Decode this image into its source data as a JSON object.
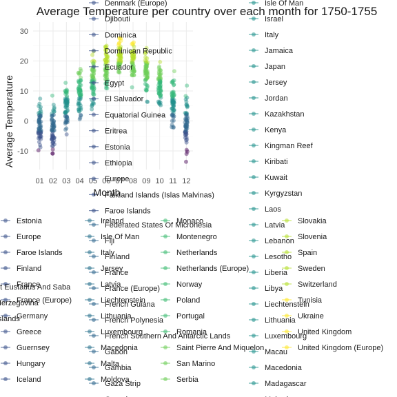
{
  "chart_data": {
    "type": "scatter",
    "title": "Average Temperature per country over each month for 1750-1755",
    "xlabel": "Month",
    "ylabel": "Average Temperature",
    "categories": [
      "01",
      "02",
      "03",
      "04",
      "05",
      "06",
      "07",
      "08",
      "09",
      "10",
      "11",
      "12"
    ],
    "yticks": [
      -10,
      0,
      10,
      20,
      30
    ],
    "ylim": [
      -15,
      32
    ],
    "grid": true,
    "legend_position": "overlapping, multi-column",
    "month_ranges": [
      {
        "month": "01",
        "min": -12,
        "max": 11
      },
      {
        "month": "02",
        "min": -14,
        "max": 11
      },
      {
        "month": "03",
        "min": -7,
        "max": 16
      },
      {
        "month": "04",
        "min": -3,
        "max": 21
      },
      {
        "month": "05",
        "min": 2,
        "max": 26
      },
      {
        "month": "06",
        "min": 8,
        "max": 29
      },
      {
        "month": "07",
        "min": 12,
        "max": 31
      },
      {
        "month": "08",
        "min": 10,
        "max": 30
      },
      {
        "month": "09",
        "min": 5,
        "max": 27
      },
      {
        "month": "10",
        "min": 1,
        "max": 23
      },
      {
        "month": "11",
        "min": -6,
        "max": 18
      },
      {
        "month": "12",
        "min": -15,
        "max": 15
      }
    ],
    "legend_columns": [
      {
        "entries": [
          {
            "label": "Denmark (Europe)",
            "color": "#3b528b"
          },
          {
            "label": "Djibouti",
            "color": "#3b528b"
          },
          {
            "label": "Dominica",
            "color": "#3b528b"
          },
          {
            "label": "Dominican Republic",
            "color": "#3b528b"
          },
          {
            "label": "Ecuador",
            "color": "#3b528b"
          },
          {
            "label": "Egypt",
            "color": "#3b528b"
          },
          {
            "label": "El Salvador",
            "color": "#3b528b"
          },
          {
            "label": "Equatorial Guinea",
            "color": "#3b528b"
          },
          {
            "label": "Eritrea",
            "color": "#3b528b"
          },
          {
            "label": "Estonia",
            "color": "#3b528b"
          },
          {
            "label": "Ethiopia",
            "color": "#3b528b"
          },
          {
            "label": "Europe",
            "color": "#3b528b"
          },
          {
            "label": "Falkland Islands (Islas Malvinas)",
            "color": "#3b528b"
          },
          {
            "label": "Faroe Islands",
            "color": "#3b528b"
          }
        ]
      },
      {
        "entries": [
          {
            "label": "Federated States Of Micronesia",
            "color": "#31688e"
          },
          {
            "label": "Fiji",
            "color": "#31688e"
          },
          {
            "label": "Finland",
            "color": "#31688e"
          },
          {
            "label": "France",
            "color": "#31688e"
          },
          {
            "label": "France (Europe)",
            "color": "#31688e"
          },
          {
            "label": "French Guiana",
            "color": "#31688e"
          },
          {
            "label": "French Polynesia",
            "color": "#31688e"
          },
          {
            "label": "French Southern And Antarctic Lands",
            "color": "#31688e"
          },
          {
            "label": "Gabon",
            "color": "#31688e"
          },
          {
            "label": "Gambia",
            "color": "#31688e"
          },
          {
            "label": "Gaza Strip",
            "color": "#31688e"
          },
          {
            "label": "Georgia",
            "color": "#31688e"
          }
        ]
      },
      {
        "entries": [
          {
            "label": "Estonia",
            "color": "#3b528b"
          },
          {
            "label": "Europe",
            "color": "#3b528b"
          },
          {
            "label": "Faroe Islands",
            "color": "#3b528b"
          },
          {
            "label": "Finland",
            "color": "#3b528b"
          },
          {
            "label": "France",
            "color": "#3b528b"
          },
          {
            "label": "France (Europe)",
            "color": "#3b528b"
          },
          {
            "label": "Germany",
            "color": "#3b528b"
          },
          {
            "label": "Greece",
            "color": "#3b528b"
          },
          {
            "label": "Guernsey",
            "color": "#3b528b"
          },
          {
            "label": "Hungary",
            "color": "#3b528b"
          },
          {
            "label": "Iceland",
            "color": "#3b528b"
          }
        ]
      },
      {
        "entries": [
          {
            "label": "Ireland",
            "color": "#2c728e"
          },
          {
            "label": "Isle Of Man",
            "color": "#2c728e"
          },
          {
            "label": "Italy",
            "color": "#2c728e"
          },
          {
            "label": "Jersey",
            "color": "#2c728e"
          },
          {
            "label": "Latvia",
            "color": "#2c728e"
          },
          {
            "label": "Liechtenstein",
            "color": "#2c728e"
          },
          {
            "label": "Lithuania",
            "color": "#2c728e"
          },
          {
            "label": "Luxembourg",
            "color": "#2c728e"
          },
          {
            "label": "Macedonia",
            "color": "#2c728e"
          },
          {
            "label": "Malta",
            "color": "#2c728e"
          },
          {
            "label": "Moldova",
            "color": "#2c728e"
          }
        ]
      },
      {
        "entries": [
          {
            "label": "Monaco",
            "color": "#3fbc73"
          },
          {
            "label": "Montenegro",
            "color": "#3fbc73"
          },
          {
            "label": "Netherlands",
            "color": "#3fbc73"
          },
          {
            "label": "Netherlands (Europe)",
            "color": "#3fbc73"
          },
          {
            "label": "Norway",
            "color": "#3fbc73"
          },
          {
            "label": "Poland",
            "color": "#3fbc73"
          },
          {
            "label": "Portugal",
            "color": "#3fbc73"
          },
          {
            "label": "Romania",
            "color": "#3fbc73"
          },
          {
            "label": "Saint Pierre And Miquelon",
            "color": "#6ece58"
          },
          {
            "label": "San Marino",
            "color": "#6ece58"
          },
          {
            "label": "Serbia",
            "color": "#6ece58"
          }
        ]
      },
      {
        "entries": [
          {
            "label": "Isle Of Man",
            "color": "#21918c"
          },
          {
            "label": "Israel",
            "color": "#21918c"
          },
          {
            "label": "Italy",
            "color": "#21918c"
          },
          {
            "label": "Jamaica",
            "color": "#21918c"
          },
          {
            "label": "Japan",
            "color": "#21918c"
          },
          {
            "label": "Jersey",
            "color": "#21918c"
          },
          {
            "label": "Jordan",
            "color": "#21918c"
          },
          {
            "label": "Kazakhstan",
            "color": "#21918c"
          },
          {
            "label": "Kenya",
            "color": "#21918c"
          },
          {
            "label": "Kingman Reef",
            "color": "#21918c"
          },
          {
            "label": "Kiribati",
            "color": "#21918c"
          },
          {
            "label": "Kuwait",
            "color": "#21918c"
          },
          {
            "label": "Kyrgyzstan",
            "color": "#21918c"
          },
          {
            "label": "Laos",
            "color": "#21918c"
          },
          {
            "label": "Latvia",
            "color": "#21918c"
          },
          {
            "label": "Lebanon",
            "color": "#21918c"
          },
          {
            "label": "Lesotho",
            "color": "#21918c"
          },
          {
            "label": "Liberia",
            "color": "#21918c"
          },
          {
            "label": "Libya",
            "color": "#21918c"
          },
          {
            "label": "Liechtenstein",
            "color": "#21918c"
          },
          {
            "label": "Lithuania",
            "color": "#21918c"
          },
          {
            "label": "Luxembourg",
            "color": "#21918c"
          },
          {
            "label": "Macau",
            "color": "#21918c"
          },
          {
            "label": "Macedonia",
            "color": "#21918c"
          },
          {
            "label": "Madagascar",
            "color": "#21918c"
          },
          {
            "label": "Malawi",
            "color": "#21918c"
          }
        ]
      },
      {
        "entries": [
          {
            "label": "Slovakia",
            "color": "#b5de2b"
          },
          {
            "label": "Slovenia",
            "color": "#b5de2b"
          },
          {
            "label": "Spain",
            "color": "#b5de2b"
          },
          {
            "label": "Sweden",
            "color": "#b5de2b"
          },
          {
            "label": "Switzerland",
            "color": "#b5de2b"
          },
          {
            "label": "Tunisia",
            "color": "#fde725"
          },
          {
            "label": "Ukraine",
            "color": "#fde725"
          },
          {
            "label": "United Kingdom",
            "color": "#fde725"
          },
          {
            "label": "United Kingdom (Europe)",
            "color": "#fde725"
          }
        ]
      },
      {
        "entries": [
          {
            "label": "nt Eustatius And Saba",
            "color": "none"
          },
          {
            "label": "Herzegovina",
            "color": "none"
          },
          {
            "label": "Islands",
            "color": "none"
          },
          {
            "label": "o",
            "color": "none"
          }
        ]
      }
    ]
  }
}
